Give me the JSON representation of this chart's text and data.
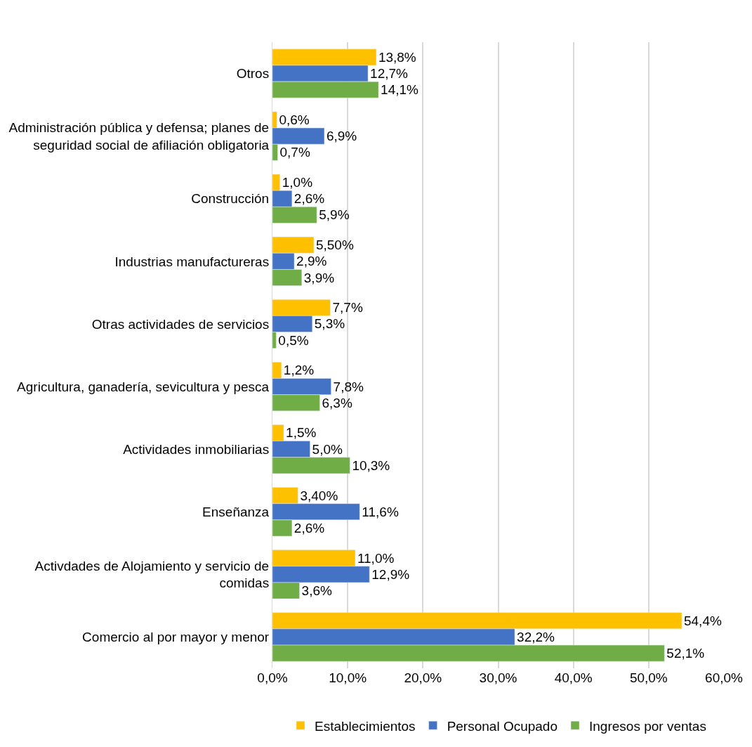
{
  "chart_data": {
    "type": "bar",
    "orientation": "horizontal",
    "categories": [
      "Otros",
      "Administración pública y defensa; planes de seguridad social de afiliación obligatoria",
      "Construcción",
      "Industrias manufactureras",
      "Otras actividades de servicios",
      "Agricultura, ganadería, sevicultura y pesca",
      "Actividades inmobiliarias",
      "Enseñanza",
      "Activdades de Alojamiento y servicio de comidas",
      "Comercio al por mayor y menor"
    ],
    "series": [
      {
        "name": "Establecimientos",
        "color": "#ffc000",
        "values": [
          13.8,
          0.6,
          1.0,
          5.5,
          7.7,
          1.2,
          1.5,
          3.4,
          11.0,
          54.4
        ],
        "value_labels": [
          "13,8%",
          "0,6%",
          "1,0%",
          "5,50%",
          "7,7%",
          "1,2%",
          "1,5%",
          "3,40%",
          "11,0%",
          "54,4%"
        ]
      },
      {
        "name": "Personal Ocupado",
        "color": "#4472c4",
        "values": [
          12.7,
          6.9,
          2.6,
          2.9,
          5.3,
          7.8,
          5.0,
          11.6,
          12.9,
          32.2
        ],
        "value_labels": [
          "12,7%",
          "6,9%",
          "2,6%",
          "2,9%",
          "5,3%",
          "7,8%",
          "5,0%",
          "11,6%",
          "12,9%",
          "32,2%"
        ]
      },
      {
        "name": "Ingresos por ventas",
        "color": "#70ad47",
        "values": [
          14.1,
          0.7,
          5.9,
          3.9,
          0.5,
          6.3,
          10.3,
          2.6,
          3.6,
          52.1
        ],
        "value_labels": [
          "14,1%",
          "0,7%",
          "5,9%",
          "3,9%",
          "0,5%",
          "6,3%",
          "10,3%",
          "2,6%",
          "3,6%",
          "52,1%"
        ]
      }
    ],
    "xlim": [
      0,
      60
    ],
    "xticks": [
      {
        "value": 0,
        "label": "0,0%"
      },
      {
        "value": 10,
        "label": "10,0%"
      },
      {
        "value": 20,
        "label": "20,0%"
      },
      {
        "value": 30,
        "label": "30,0%"
      },
      {
        "value": 40,
        "label": "40,0%"
      },
      {
        "value": 50,
        "label": "50,0%"
      },
      {
        "value": 60,
        "label": "60,0%"
      }
    ],
    "grid": "x",
    "legend": "bottom"
  }
}
